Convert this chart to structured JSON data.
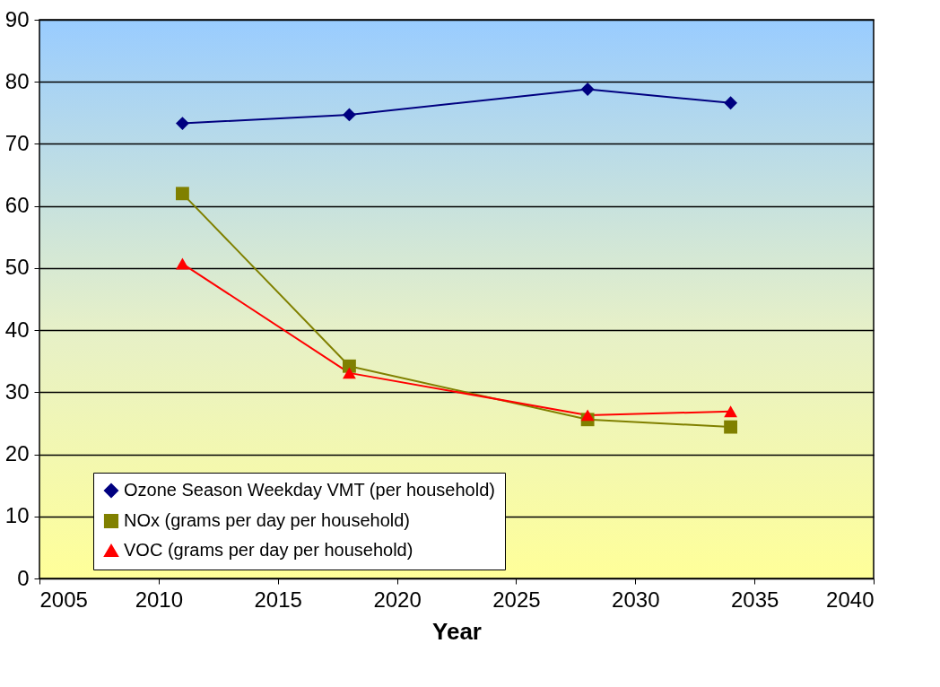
{
  "chart_data": {
    "type": "line",
    "xlabel": "Year",
    "x": [
      2011,
      2018,
      2028,
      2034
    ],
    "xlim": [
      2005,
      2040
    ],
    "xticks": [
      2005,
      2010,
      2015,
      2020,
      2025,
      2030,
      2035,
      2040
    ],
    "ylim": [
      0,
      90
    ],
    "yticks": [
      0,
      10,
      20,
      30,
      40,
      50,
      60,
      70,
      80,
      90
    ],
    "grid": "y",
    "legend": "bottom",
    "series": [
      {
        "name": "Ozone Season Weekday VMT (per household)",
        "color": "#000080",
        "marker": "diamond",
        "values": [
          73.3,
          74.7,
          78.8,
          76.6
        ]
      },
      {
        "name": "NOx (grams per day per household)",
        "color": "#808000",
        "marker": "square",
        "values": [
          62.0,
          34.2,
          25.6,
          24.4
        ]
      },
      {
        "name": "VOC (grams per day per household)",
        "color": "#ff0000",
        "marker": "triangle",
        "values": [
          50.7,
          33.1,
          26.3,
          26.9
        ]
      }
    ]
  }
}
